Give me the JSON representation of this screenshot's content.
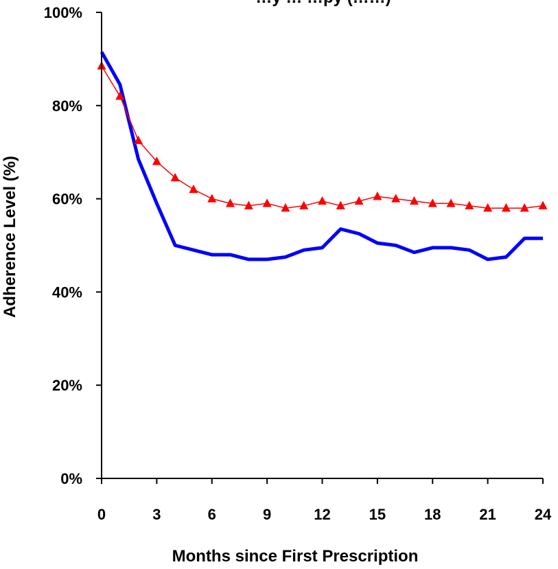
{
  "chart_data": {
    "type": "line",
    "title": "…y … …py (……)",
    "xlabel": "Months since First Prescription",
    "ylabel": "Adherence Level (%)",
    "xlim": [
      0,
      24
    ],
    "ylim": [
      0,
      100
    ],
    "x_ticks": [
      0,
      3,
      6,
      9,
      12,
      15,
      18,
      21,
      24
    ],
    "y_ticks": [
      "0%",
      "20%",
      "40%",
      "60%",
      "80%",
      "100%"
    ],
    "y_tick_values": [
      0,
      20,
      40,
      60,
      80,
      100
    ],
    "grid": false,
    "x": [
      0,
      1,
      2,
      3,
      4,
      5,
      6,
      7,
      8,
      9,
      10,
      11,
      12,
      13,
      14,
      15,
      16,
      17,
      18,
      19,
      20,
      21,
      22,
      23,
      24
    ],
    "series": [
      {
        "color": "#0000ff",
        "marker": "none",
        "values": [
          91.5,
          84.5,
          68.5,
          59,
          50,
          49,
          48,
          48,
          47,
          47,
          47.5,
          49,
          49.5,
          53.5,
          52.5,
          50.5,
          50,
          48.5,
          49.5,
          49.5,
          49,
          47,
          47.5,
          51.5,
          51.5
        ]
      },
      {
        "color": "#ff0000",
        "marker": "triangle",
        "values": [
          88.5,
          82,
          72.5,
          68,
          64.5,
          62,
          60,
          59,
          58.5,
          59,
          58,
          58.5,
          59.5,
          58.5,
          59.5,
          60.5,
          60,
          59.5,
          59,
          59,
          58.5,
          58,
          58,
          58,
          58.5
        ]
      }
    ]
  }
}
